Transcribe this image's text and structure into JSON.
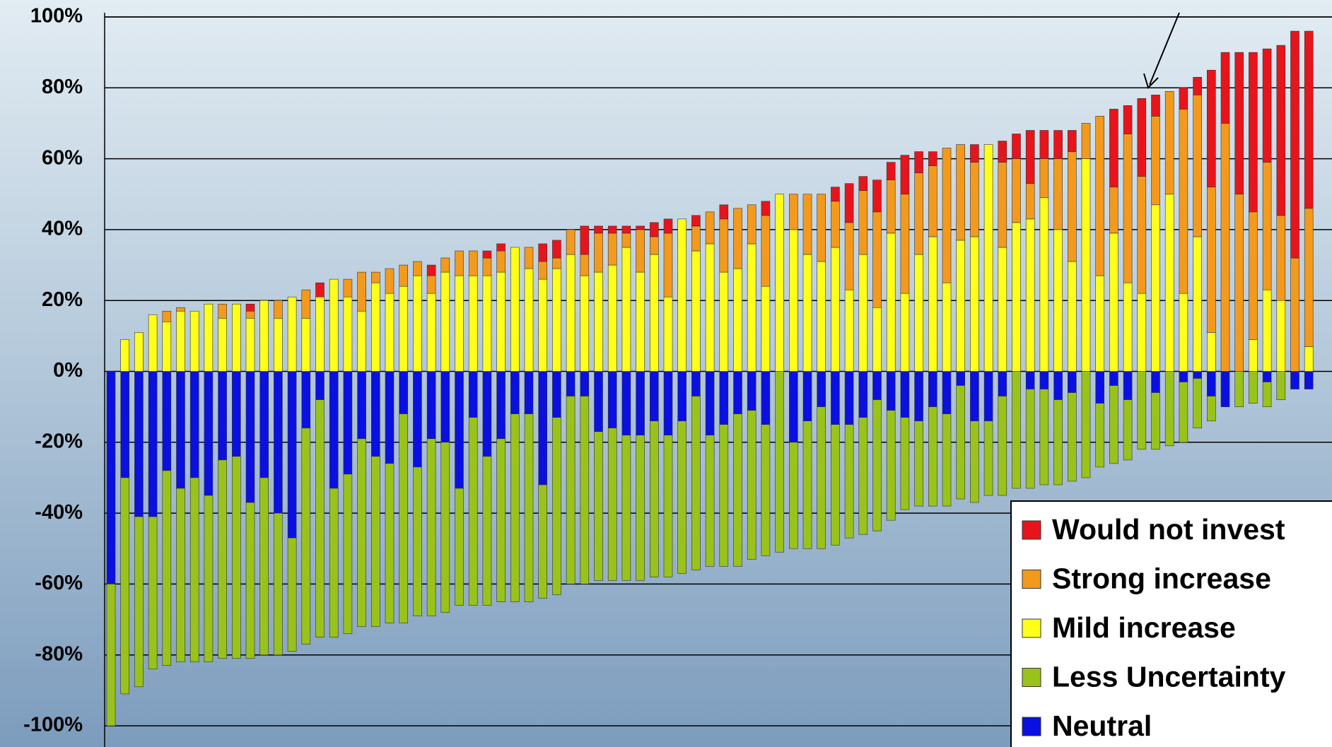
{
  "chart_data": {
    "type": "stacked-bar",
    "ylim": [
      -100,
      100
    ],
    "yticks": [
      {
        "value": -100,
        "label": "-100%"
      },
      {
        "value": -80,
        "label": "-80%"
      },
      {
        "value": -60,
        "label": "-60%"
      },
      {
        "value": -40,
        "label": "-40%"
      },
      {
        "value": -20,
        "label": "-20%"
      },
      {
        "value": 0,
        "label": "0%"
      },
      {
        "value": 20,
        "label": "20%"
      },
      {
        "value": 40,
        "label": "40%"
      },
      {
        "value": 60,
        "label": "60%"
      },
      {
        "value": 80,
        "label": "80%"
      },
      {
        "value": 100,
        "label": "100%"
      }
    ],
    "grid": true,
    "legend": "bottom-right",
    "series": [
      {
        "name": "Would not invest",
        "color": "#e8141b",
        "values": [
          0,
          0,
          0,
          0,
          0,
          0,
          0,
          0,
          0,
          0,
          2,
          0,
          0,
          0,
          0,
          4,
          0,
          0,
          0,
          0,
          0,
          0,
          0,
          3,
          0,
          0,
          0,
          2,
          2,
          0,
          0,
          5,
          5,
          0,
          8,
          2,
          2,
          2,
          1,
          4,
          4,
          0,
          3,
          0,
          4,
          0,
          0,
          4,
          0,
          0,
          0,
          0,
          4,
          11,
          4,
          9,
          5,
          11,
          6,
          4,
          0,
          0,
          5,
          0,
          6,
          7,
          15,
          8,
          8,
          6,
          0,
          0,
          22,
          8,
          22,
          6,
          0,
          6,
          5,
          33,
          20,
          40,
          45,
          32,
          48,
          64,
          50
        ]
      },
      {
        "name": "Strong increase",
        "color": "#f39a1c",
        "values": [
          0,
          0,
          0,
          0,
          3,
          1,
          0,
          0,
          4,
          0,
          2,
          0,
          5,
          0,
          8,
          0,
          0,
          5,
          11,
          3,
          7,
          6,
          4,
          5,
          4,
          7,
          7,
          5,
          6,
          0,
          6,
          5,
          3,
          7,
          6,
          11,
          9,
          4,
          12,
          5,
          18,
          0,
          7,
          9,
          15,
          17,
          11,
          20,
          0,
          10,
          17,
          19,
          13,
          19,
          18,
          27,
          15,
          28,
          23,
          20,
          38,
          27,
          21,
          0,
          24,
          18,
          10,
          11,
          20,
          31,
          10,
          45,
          13,
          42,
          33,
          25,
          29,
          52,
          40,
          41,
          70,
          50,
          36,
          36,
          24,
          32,
          39
        ]
      },
      {
        "name": "Mild increase",
        "color": "#ffff1a",
        "values": [
          0,
          9,
          11,
          16,
          14,
          17,
          17,
          19,
          15,
          19,
          15,
          20,
          15,
          21,
          15,
          21,
          26,
          21,
          17,
          25,
          22,
          24,
          27,
          22,
          28,
          27,
          27,
          27,
          28,
          35,
          29,
          26,
          29,
          33,
          27,
          28,
          30,
          35,
          28,
          33,
          21,
          43,
          34,
          36,
          28,
          29,
          36,
          24,
          50,
          40,
          33,
          31,
          35,
          23,
          33,
          18,
          39,
          22,
          33,
          38,
          25,
          37,
          38,
          64,
          35,
          42,
          43,
          49,
          40,
          31,
          60,
          27,
          39,
          25,
          22,
          47,
          50,
          22,
          38,
          11,
          0,
          0,
          9,
          23,
          20,
          0,
          7
        ]
      },
      {
        "name": "Less Uncertainty",
        "color": "#99c31a",
        "values": [
          -40,
          -61,
          -48,
          -43,
          -55,
          -49,
          -52,
          -47,
          -56,
          -57,
          -44,
          -50,
          -40,
          -32,
          -61,
          -67,
          -42,
          -45,
          -53,
          -48,
          -45,
          -59,
          -42,
          -50,
          -48,
          -33,
          -53,
          -42,
          -46,
          -53,
          -53,
          -32,
          -50,
          -53,
          -53,
          -42,
          -43,
          -41,
          -41,
          -44,
          -40,
          -43,
          -49,
          -37,
          -40,
          -43,
          -42,
          -37,
          -51,
          -30,
          -36,
          -40,
          -34,
          -32,
          -33,
          -37,
          -31,
          -26,
          -24,
          -28,
          -26,
          -32,
          -23,
          -21,
          -28,
          -33,
          -28,
          -27,
          -24,
          -25,
          -30,
          -18,
          -22,
          -17,
          -22,
          -16,
          -21,
          -17,
          -14,
          -7,
          0,
          -10,
          -9,
          -7,
          -8,
          0,
          0
        ]
      },
      {
        "name": "Neutral",
        "color": "#0a10e0",
        "values": [
          -60,
          -30,
          -41,
          -41,
          -28,
          -33,
          -30,
          -35,
          -25,
          -24,
          -37,
          -30,
          -40,
          -47,
          -16,
          -8,
          -33,
          -29,
          -19,
          -24,
          -26,
          -12,
          -27,
          -19,
          -20,
          -33,
          -13,
          -24,
          -19,
          -12,
          -12,
          -32,
          -13,
          -7,
          -7,
          -17,
          -16,
          -18,
          -18,
          -14,
          -18,
          -14,
          -7,
          -18,
          -15,
          -12,
          -11,
          -15,
          0,
          -20,
          -14,
          -10,
          -15,
          -15,
          -13,
          -8,
          -11,
          -13,
          -14,
          -10,
          -12,
          -4,
          -14,
          -14,
          -7,
          0,
          -5,
          -5,
          -8,
          -6,
          0,
          -9,
          -4,
          -8,
          0,
          -6,
          0,
          -3,
          -2,
          -7,
          -10,
          0,
          0,
          -3,
          0,
          -5,
          -5
        ]
      }
    ]
  }
}
